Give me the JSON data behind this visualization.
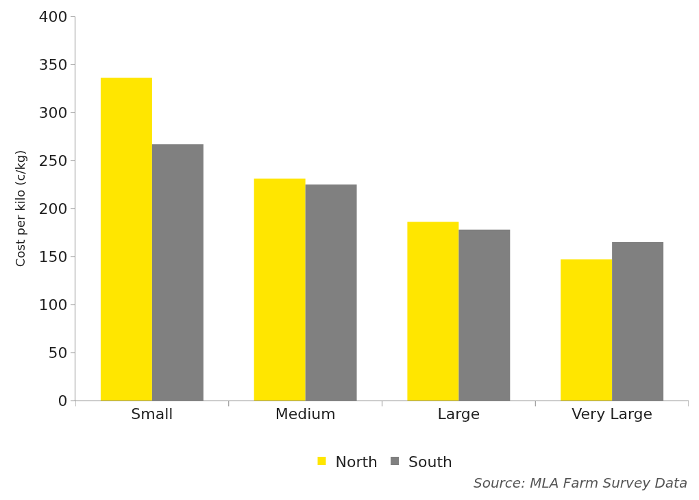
{
  "chart_data": {
    "type": "bar",
    "ylabel": "Cost per kilo (c/kg)",
    "categories": [
      "Small",
      "Medium",
      "Large",
      "Very Large"
    ],
    "series": [
      {
        "name": "North",
        "color": "#ffe600",
        "values": [
          336,
          231,
          186,
          147
        ]
      },
      {
        "name": "South",
        "color": "#808080",
        "values": [
          267,
          225,
          178,
          165
        ]
      }
    ],
    "ylim": [
      0,
      400
    ],
    "yticks": [
      0,
      50,
      100,
      150,
      200,
      250,
      300,
      350,
      400
    ],
    "legend": "bottom",
    "annotations": [
      "Source: MLA Farm Survey Data"
    ]
  }
}
